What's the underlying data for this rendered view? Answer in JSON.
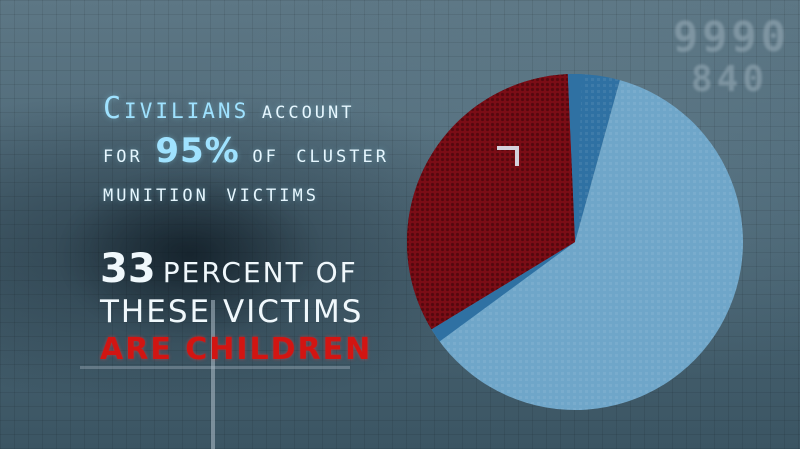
{
  "headline": {
    "civilians": "Civilians",
    "account": "account",
    "for": "for",
    "percent": "95%",
    "of_cluster": "of cluster",
    "line3": "munition victims"
  },
  "subline": {
    "number": "33",
    "percent_of": "PERCENT OF",
    "line2": "THESE VICTIMS",
    "line3": "ARE CHILDREN"
  },
  "corner_digits": {
    "line1": "9990",
    "line2": "840"
  },
  "colors": {
    "civilian_light": "#6fa6c9",
    "civilian_dark": "#2d6f9c",
    "children_red": "#7b0d16",
    "non_civilian": "#3678a8"
  },
  "chart_data": {
    "type": "pie",
    "title": "",
    "slices": [
      {
        "value": 5,
        "color": "#2f71a3"
      },
      {
        "value": 62,
        "color": "#6fa6c9"
      },
      {
        "value": 33,
        "color": "#7b0d16"
      }
    ]
  }
}
